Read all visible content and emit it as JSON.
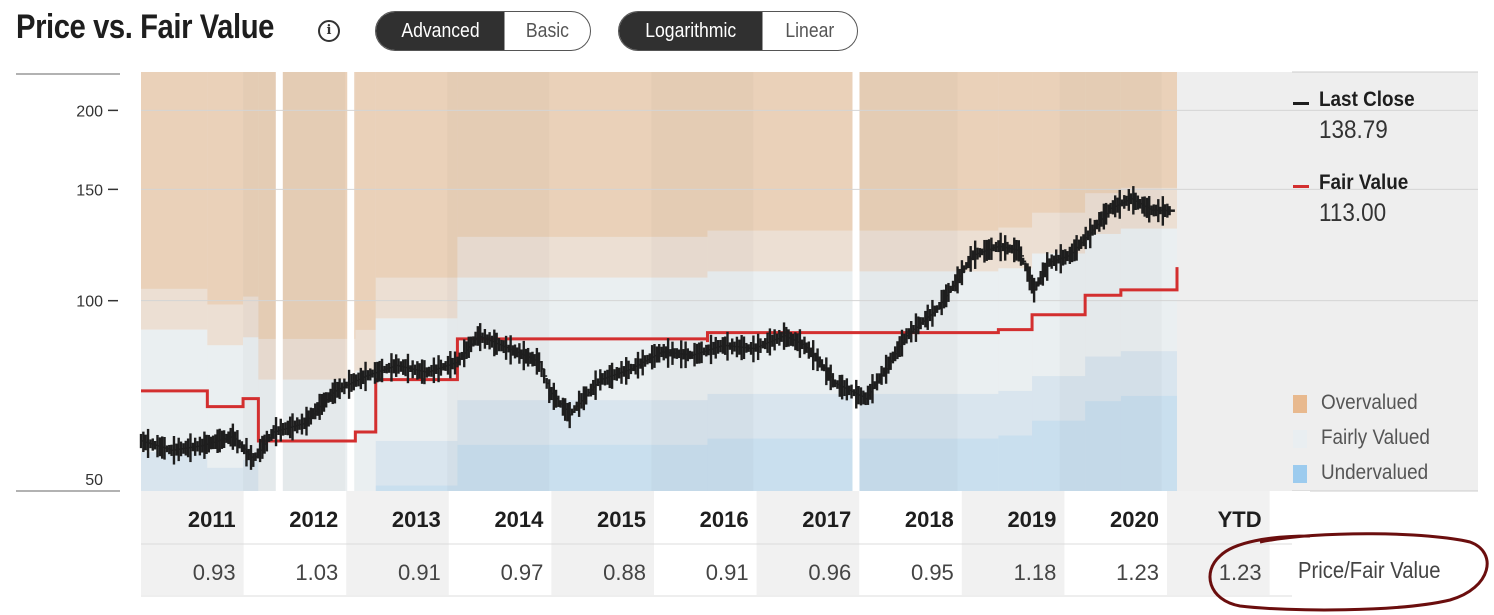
{
  "header": {
    "title": "Price vs. Fair Value",
    "info_icon": "info-icon",
    "mode_toggle": {
      "options": [
        "Advanced",
        "Basic"
      ],
      "selected": "Advanced"
    },
    "scale_toggle": {
      "options": [
        "Logarithmic",
        "Linear"
      ],
      "selected": "Logarithmic"
    }
  },
  "legend": {
    "last_close": {
      "label": "Last Close",
      "value": "138.79",
      "color": "#1e1e1e"
    },
    "fair_value": {
      "label": "Fair Value",
      "value": "113.00",
      "color": "#d32f2f"
    },
    "zones": [
      {
        "label": "Overvalued",
        "color": "#e8b98e"
      },
      {
        "label": "Fairly Valued",
        "color": "#e9eef1"
      },
      {
        "label": "Undervalued",
        "color": "#9ccbee"
      }
    ]
  },
  "table": {
    "years": [
      "2011",
      "2012",
      "2013",
      "2014",
      "2015",
      "2016",
      "2017",
      "2018",
      "2019",
      "2020",
      "YTD"
    ],
    "price_fair_value": [
      "0.93",
      "1.03",
      "0.91",
      "0.97",
      "0.88",
      "0.91",
      "0.96",
      "0.95",
      "1.18",
      "1.23",
      "1.23"
    ],
    "row_caption": "Price/Fair Value"
  },
  "chart_data": {
    "type": "line",
    "y_scale": "log",
    "ylim": [
      50,
      230
    ],
    "y_ticks": [
      50,
      100,
      150,
      200
    ],
    "x_range": [
      2011.0,
      2021.15
    ],
    "fair_value": {
      "name": "Fair Value",
      "x": [
        2011.0,
        2011.65,
        2012.0,
        2012.15,
        2013.1,
        2013.3,
        2014.1,
        2016.55,
        2016.55,
        2019.4,
        2019.73,
        2020.25,
        2020.6,
        2021.15
      ],
      "y": [
        72,
        68,
        70,
        60,
        62,
        75,
        87,
        86,
        89,
        90,
        95,
        102,
        104,
        113
      ]
    },
    "last_close": {
      "name": "Last Close",
      "x": [
        2011.0,
        2011.3,
        2011.6,
        2011.9,
        2012.1,
        2012.3,
        2012.6,
        2012.9,
        2013.2,
        2013.5,
        2013.8,
        2014.1,
        2014.3,
        2014.6,
        2014.9,
        2015.0,
        2015.2,
        2015.5,
        2015.8,
        2016.1,
        2016.4,
        2016.7,
        2017.0,
        2017.3,
        2017.5,
        2017.65,
        2017.8,
        2018.1,
        2018.3,
        2018.5,
        2018.8,
        2019.0,
        2019.15,
        2019.4,
        2019.6,
        2019.75,
        2019.9,
        2020.1,
        2020.3,
        2020.5,
        2020.7,
        2020.9,
        2021.1
      ],
      "y": [
        60,
        58,
        59,
        61,
        56,
        62,
        64,
        72,
        76,
        79,
        77,
        80,
        88,
        84,
        80,
        72,
        66,
        75,
        78,
        83,
        82,
        85,
        84,
        88,
        85,
        80,
        74,
        70,
        78,
        88,
        97,
        108,
        118,
        122,
        120,
        104,
        115,
        118,
        128,
        140,
        145,
        139,
        138.79
      ]
    },
    "valuation_zones": [
      {
        "label": "Overvalued",
        "from_ratio": 1.25
      },
      {
        "label": "Fairly Valued",
        "from_ratio": 0.8,
        "to_ratio": 1.25
      },
      {
        "label": "Undervalued",
        "to_ratio": 0.8
      }
    ]
  }
}
